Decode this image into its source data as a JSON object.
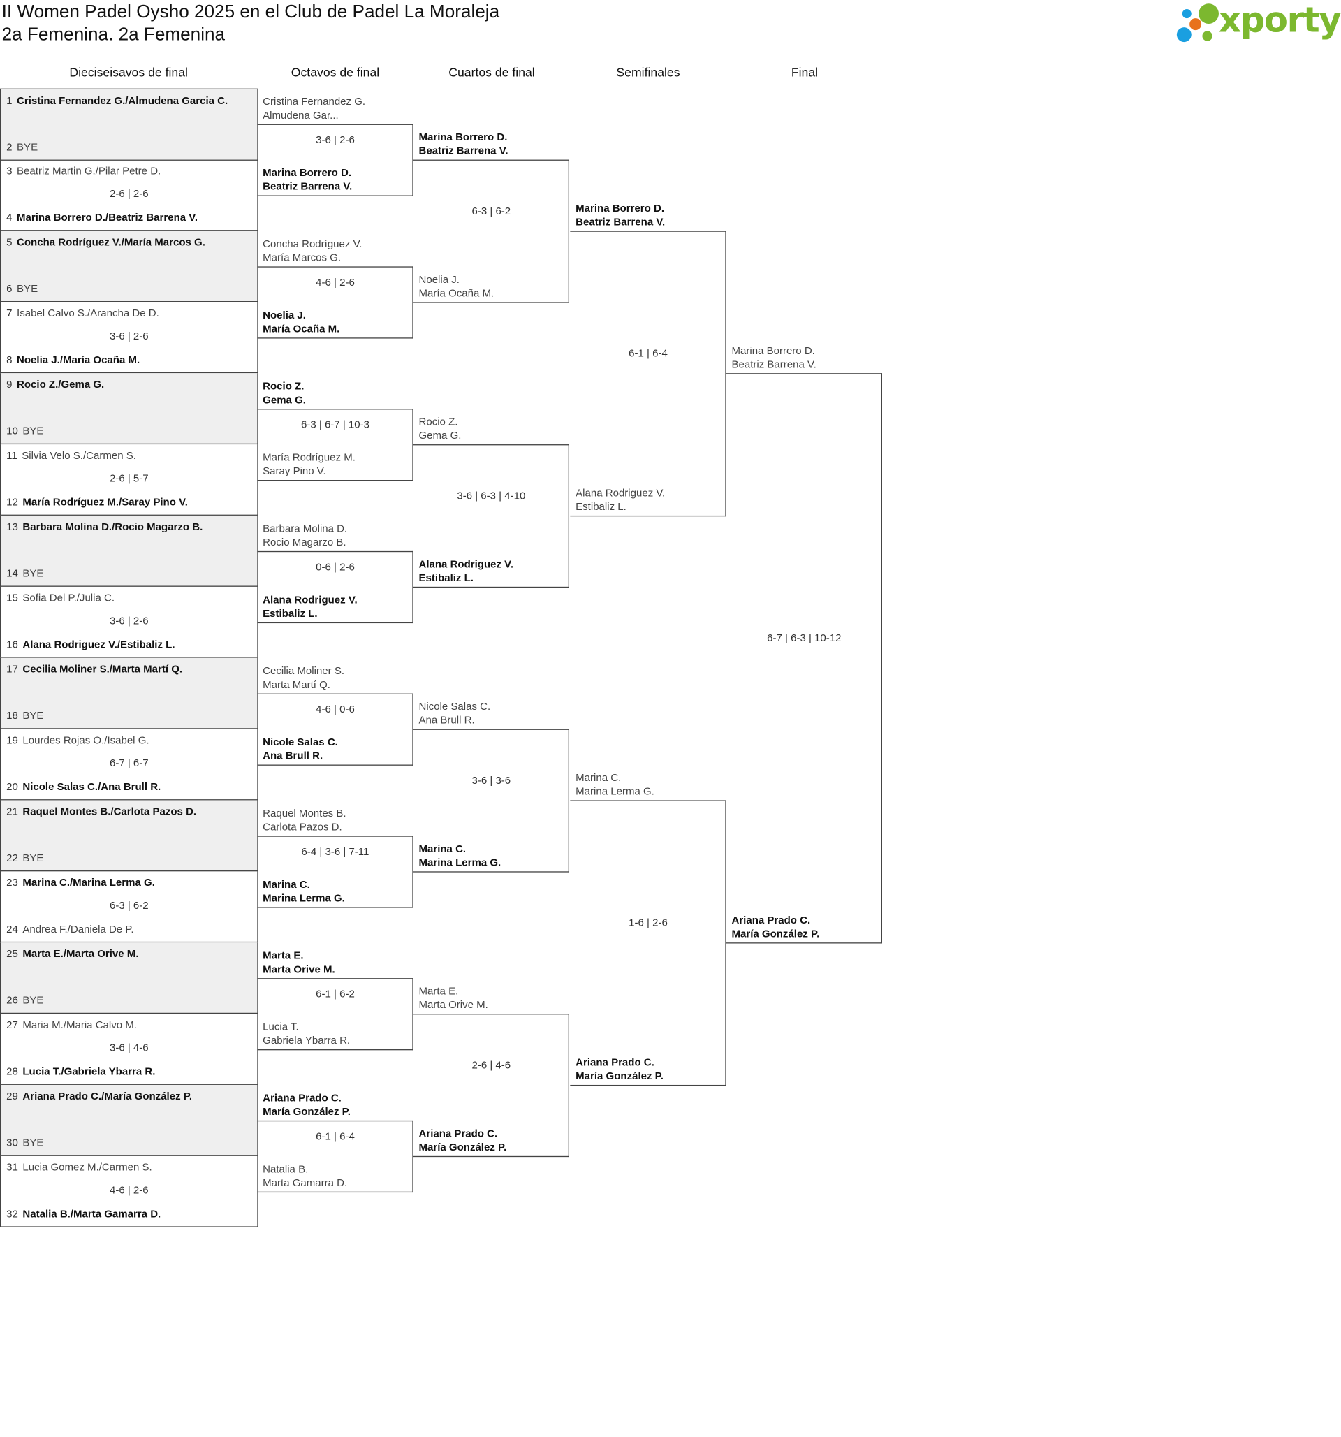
{
  "header": {
    "title": "II Women Padel Oysho 2025 en el Club de Padel La Moraleja",
    "subtitle": "2a Femenina. 2a Femenina",
    "logo_text": "xporty",
    "logo_colors": {
      "green": "#7cb82f",
      "blue": "#1a9fe0",
      "orange": "#e8721c"
    }
  },
  "rounds": [
    "Dieciseisavos de final",
    "Octavos de final",
    "Cuartos de final",
    "Semifinales",
    "Final"
  ],
  "round1": [
    {
      "bye": true,
      "score": "",
      "top": {
        "seed": "1",
        "name": "Cristina Fernandez G./Almudena Garcia C.",
        "win": true
      },
      "bottom": {
        "seed": "2",
        "name": "BYE",
        "win": false
      }
    },
    {
      "bye": false,
      "score": "2-6 | 2-6",
      "top": {
        "seed": "3",
        "name": "Beatriz Martin G./Pilar Petre D.",
        "win": false
      },
      "bottom": {
        "seed": "4",
        "name": "Marina Borrero D./Beatriz Barrena V.",
        "win": true
      }
    },
    {
      "bye": true,
      "score": "",
      "top": {
        "seed": "5",
        "name": "Concha Rodríguez V./María Marcos G.",
        "win": true
      },
      "bottom": {
        "seed": "6",
        "name": "BYE",
        "win": false
      }
    },
    {
      "bye": false,
      "score": "3-6 | 2-6",
      "top": {
        "seed": "7",
        "name": "Isabel Calvo S./Arancha De D.",
        "win": false
      },
      "bottom": {
        "seed": "8",
        "name": "Noelia J./María Ocaña M.",
        "win": true
      }
    },
    {
      "bye": true,
      "score": "",
      "top": {
        "seed": "9",
        "name": "Rocio Z./Gema G.",
        "win": true
      },
      "bottom": {
        "seed": "10",
        "name": "BYE",
        "win": false
      }
    },
    {
      "bye": false,
      "score": "2-6 | 5-7",
      "top": {
        "seed": "11",
        "name": "Silvia Velo S./Carmen S.",
        "win": false
      },
      "bottom": {
        "seed": "12",
        "name": "María Rodríguez M./Saray Pino V.",
        "win": true
      }
    },
    {
      "bye": true,
      "score": "",
      "top": {
        "seed": "13",
        "name": "Barbara Molina D./Rocio Magarzo B.",
        "win": true
      },
      "bottom": {
        "seed": "14",
        "name": "BYE",
        "win": false
      }
    },
    {
      "bye": false,
      "score": "3-6 | 2-6",
      "top": {
        "seed": "15",
        "name": "Sofia Del P./Julia C.",
        "win": false
      },
      "bottom": {
        "seed": "16",
        "name": "Alana Rodriguez V./Estibaliz L.",
        "win": true
      }
    },
    {
      "bye": true,
      "score": "",
      "top": {
        "seed": "17",
        "name": "Cecilia Moliner S./Marta Martí Q.",
        "win": true
      },
      "bottom": {
        "seed": "18",
        "name": "BYE",
        "win": false
      }
    },
    {
      "bye": false,
      "score": "6-7 | 6-7",
      "top": {
        "seed": "19",
        "name": "Lourdes Rojas O./Isabel G.",
        "win": false
      },
      "bottom": {
        "seed": "20",
        "name": "Nicole Salas C./Ana Brull R.",
        "win": true
      }
    },
    {
      "bye": true,
      "score": "",
      "top": {
        "seed": "21",
        "name": "Raquel Montes B./Carlota Pazos D.",
        "win": true
      },
      "bottom": {
        "seed": "22",
        "name": "BYE",
        "win": false
      }
    },
    {
      "bye": false,
      "score": "6-3 | 6-2",
      "top": {
        "seed": "23",
        "name": "Marina C./Marina Lerma G.",
        "win": true
      },
      "bottom": {
        "seed": "24",
        "name": "Andrea F./Daniela De P.",
        "win": false
      }
    },
    {
      "bye": true,
      "score": "",
      "top": {
        "seed": "25",
        "name": "Marta E./Marta Orive M.",
        "win": true
      },
      "bottom": {
        "seed": "26",
        "name": "BYE",
        "win": false
      }
    },
    {
      "bye": false,
      "score": "3-6 | 4-6",
      "top": {
        "seed": "27",
        "name": "Maria M./Maria Calvo M.",
        "win": false
      },
      "bottom": {
        "seed": "28",
        "name": "Lucia T./Gabriela Ybarra R.",
        "win": true
      }
    },
    {
      "bye": true,
      "score": "",
      "top": {
        "seed": "29",
        "name": "Ariana Prado C./María González P.",
        "win": true
      },
      "bottom": {
        "seed": "30",
        "name": "BYE",
        "win": false
      }
    },
    {
      "bye": false,
      "score": "4-6 | 2-6",
      "top": {
        "seed": "31",
        "name": "Lucia Gomez M./Carmen S.",
        "win": false
      },
      "bottom": {
        "seed": "32",
        "name": "Natalia B./Marta Gamarra D.",
        "win": true
      }
    }
  ],
  "later_rounds": [
    [
      {
        "score": "3-6 | 2-6",
        "top": {
          "p1": "Cristina Fernandez G.",
          "p2": "Almudena Gar...",
          "win": false
        },
        "bottom": {
          "p1": "Marina Borrero D.",
          "p2": "Beatriz Barrena V.",
          "win": true
        }
      },
      {
        "score": "4-6 | 2-6",
        "top": {
          "p1": "Concha Rodríguez V.",
          "p2": "María Marcos G.",
          "win": false
        },
        "bottom": {
          "p1": "Noelia J.",
          "p2": "María Ocaña M.",
          "win": true
        }
      },
      {
        "score": "6-3 | 6-7 | 10-3",
        "top": {
          "p1": "Rocio Z.",
          "p2": "Gema G.",
          "win": true
        },
        "bottom": {
          "p1": "María Rodríguez M.",
          "p2": "Saray Pino V.",
          "win": false
        }
      },
      {
        "score": "0-6 | 2-6",
        "top": {
          "p1": "Barbara Molina D.",
          "p2": "Rocio Magarzo B.",
          "win": false
        },
        "bottom": {
          "p1": "Alana Rodriguez V.",
          "p2": "Estibaliz L.",
          "win": true
        }
      },
      {
        "score": "4-6 | 0-6",
        "top": {
          "p1": "Cecilia Moliner S.",
          "p2": "Marta Martí Q.",
          "win": false
        },
        "bottom": {
          "p1": "Nicole Salas C.",
          "p2": "Ana Brull R.",
          "win": true
        }
      },
      {
        "score": "6-4 | 3-6 | 7-11",
        "top": {
          "p1": "Raquel Montes B.",
          "p2": "Carlota Pazos D.",
          "win": false
        },
        "bottom": {
          "p1": "Marina C.",
          "p2": "Marina Lerma G.",
          "win": true
        }
      },
      {
        "score": "6-1 | 6-2",
        "top": {
          "p1": "Marta E.",
          "p2": "Marta Orive M.",
          "win": true
        },
        "bottom": {
          "p1": "Lucia T.",
          "p2": "Gabriela Ybarra R.",
          "win": false
        }
      },
      {
        "score": "6-1 | 6-4",
        "top": {
          "p1": "Ariana Prado C.",
          "p2": "María González P.",
          "win": true
        },
        "bottom": {
          "p1": "Natalia B.",
          "p2": "Marta Gamarra D.",
          "win": false
        }
      }
    ],
    [
      {
        "score": "6-3 | 6-2",
        "top": {
          "p1": "Marina Borrero D.",
          "p2": "Beatriz Barrena V.",
          "win": true
        },
        "bottom": {
          "p1": "Noelia J.",
          "p2": "María Ocaña M.",
          "win": false
        }
      },
      {
        "score": "3-6 | 6-3 | 4-10",
        "top": {
          "p1": "Rocio Z.",
          "p2": "Gema G.",
          "win": false
        },
        "bottom": {
          "p1": "Alana Rodriguez V.",
          "p2": "Estibaliz L.",
          "win": true
        }
      },
      {
        "score": "3-6 | 3-6",
        "top": {
          "p1": "Nicole Salas C.",
          "p2": "Ana Brull R.",
          "win": false
        },
        "bottom": {
          "p1": "Marina C.",
          "p2": "Marina Lerma G.",
          "win": true
        }
      },
      {
        "score": "2-6 | 4-6",
        "top": {
          "p1": "Marta E.",
          "p2": "Marta Orive M.",
          "win": false
        },
        "bottom": {
          "p1": "Ariana Prado C.",
          "p2": "María González P.",
          "win": true
        }
      }
    ],
    [
      {
        "score": "6-1 | 6-4",
        "top": {
          "p1": "Marina Borrero D.",
          "p2": "Beatriz Barrena V.",
          "win": true
        },
        "bottom": {
          "p1": "Alana Rodriguez V.",
          "p2": "Estibaliz L.",
          "win": false
        }
      },
      {
        "score": "1-6 | 2-6",
        "top": {
          "p1": "Marina C.",
          "p2": "Marina Lerma G.",
          "win": false
        },
        "bottom": {
          "p1": "Ariana Prado C.",
          "p2": "María González P.",
          "win": true
        }
      }
    ],
    [
      {
        "score": "6-7 | 6-3 | 10-12",
        "top": {
          "p1": "Marina Borrero D.",
          "p2": "Beatriz Barrena V.",
          "win": false
        },
        "bottom": {
          "p1": "Ariana Prado C.",
          "p2": "María González P.",
          "win": true
        }
      }
    ]
  ]
}
